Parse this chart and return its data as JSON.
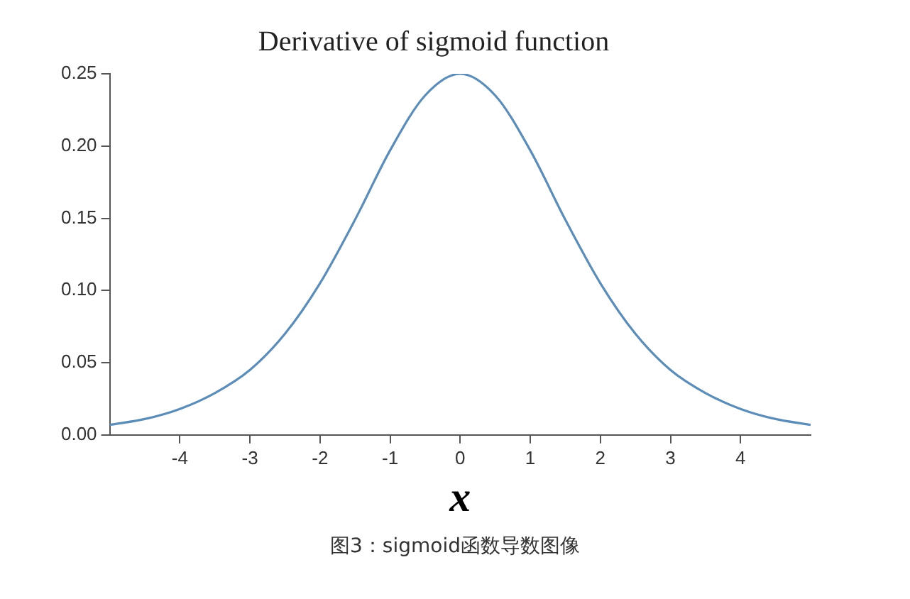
{
  "chart_data": {
    "type": "line",
    "title": "Derivative of sigmoid function",
    "xlabel": "x",
    "x": [
      -5,
      -4.5,
      -4,
      -3.5,
      -3,
      -2.5,
      -2,
      -1.5,
      -1,
      -0.5,
      0,
      0.5,
      1,
      1.5,
      2,
      2.5,
      3,
      3.5,
      4,
      4.5,
      5
    ],
    "series": [
      {
        "color": "#5b8db8",
        "values": [
          0.007,
          0.011,
          0.018,
          0.029,
          0.045,
          0.07,
          0.105,
          0.149,
          0.197,
          0.235,
          0.25,
          0.235,
          0.197,
          0.149,
          0.105,
          0.07,
          0.045,
          0.029,
          0.018,
          0.011,
          0.007
        ]
      }
    ],
    "xlim": [
      -5,
      5
    ],
    "xticks": [
      -4,
      -3,
      -2,
      -1,
      0,
      1,
      2,
      3,
      4
    ],
    "ylim": [
      0,
      0.25
    ],
    "yticks": [
      {
        "value": 0,
        "label": "0.00"
      },
      {
        "value": 0.05,
        "label": "0.05"
      },
      {
        "value": 0.1,
        "label": "0.10"
      },
      {
        "value": 0.15,
        "label": "0.15"
      },
      {
        "value": 0.2,
        "label": "0.20"
      },
      {
        "value": 0.25,
        "label": "0.25"
      }
    ],
    "grid": false,
    "legend": false,
    "marker": "none",
    "line_style": "solid",
    "annotations": [
      "图3：sigmoid函数导数图像"
    ]
  }
}
